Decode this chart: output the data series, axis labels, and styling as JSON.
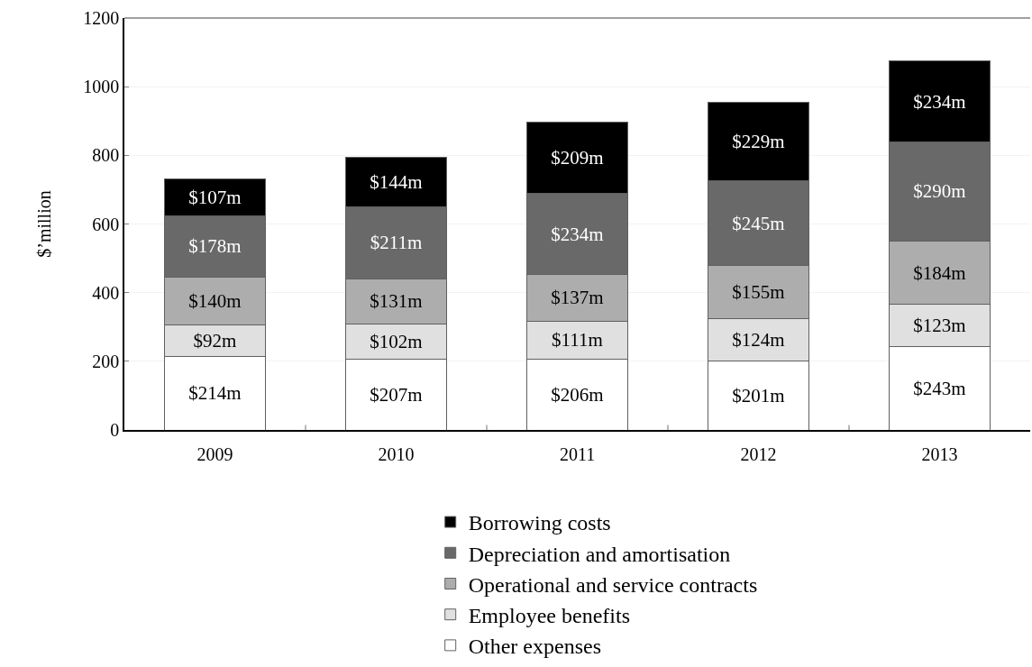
{
  "chart_data": {
    "type": "bar",
    "stacked": true,
    "ylabel": "$’million",
    "categories": [
      "2009",
      "2010",
      "2011",
      "2012",
      "2013"
    ],
    "series": [
      {
        "name": "Other expenses",
        "color": "#ffffff",
        "values": [
          214,
          207,
          206,
          201,
          243
        ],
        "value_labels": [
          "$214m",
          "$207m",
          "$206m",
          "$201m",
          "$243m"
        ]
      },
      {
        "name": "Employee benefits",
        "color": "#e0e0e0",
        "values": [
          92,
          102,
          111,
          124,
          123
        ],
        "value_labels": [
          "$92m",
          "$102m",
          "$111m",
          "$124m",
          "$123m"
        ]
      },
      {
        "name": "Operational and service contracts",
        "color": "#adadad",
        "values": [
          140,
          131,
          137,
          155,
          184
        ],
        "value_labels": [
          "$140m",
          "$131m",
          "$137m",
          "$155m",
          "$184m"
        ]
      },
      {
        "name": "Depreciation and amortisation",
        "color": "#696969",
        "values": [
          178,
          211,
          234,
          245,
          290
        ],
        "value_labels": [
          "$178m",
          "$211m",
          "$234m",
          "$245m",
          "$290m"
        ]
      },
      {
        "name": "Borrowing costs",
        "color": "#000000",
        "values": [
          107,
          144,
          209,
          229,
          234
        ],
        "value_labels": [
          "$107m",
          "$144m",
          "$209m",
          "$229m",
          "$234m"
        ]
      }
    ],
    "ylim": [
      0,
      1200
    ],
    "yticks": [
      0,
      200,
      400,
      600,
      800,
      1000,
      1200
    ],
    "grid": "y",
    "legend": "bottom"
  }
}
